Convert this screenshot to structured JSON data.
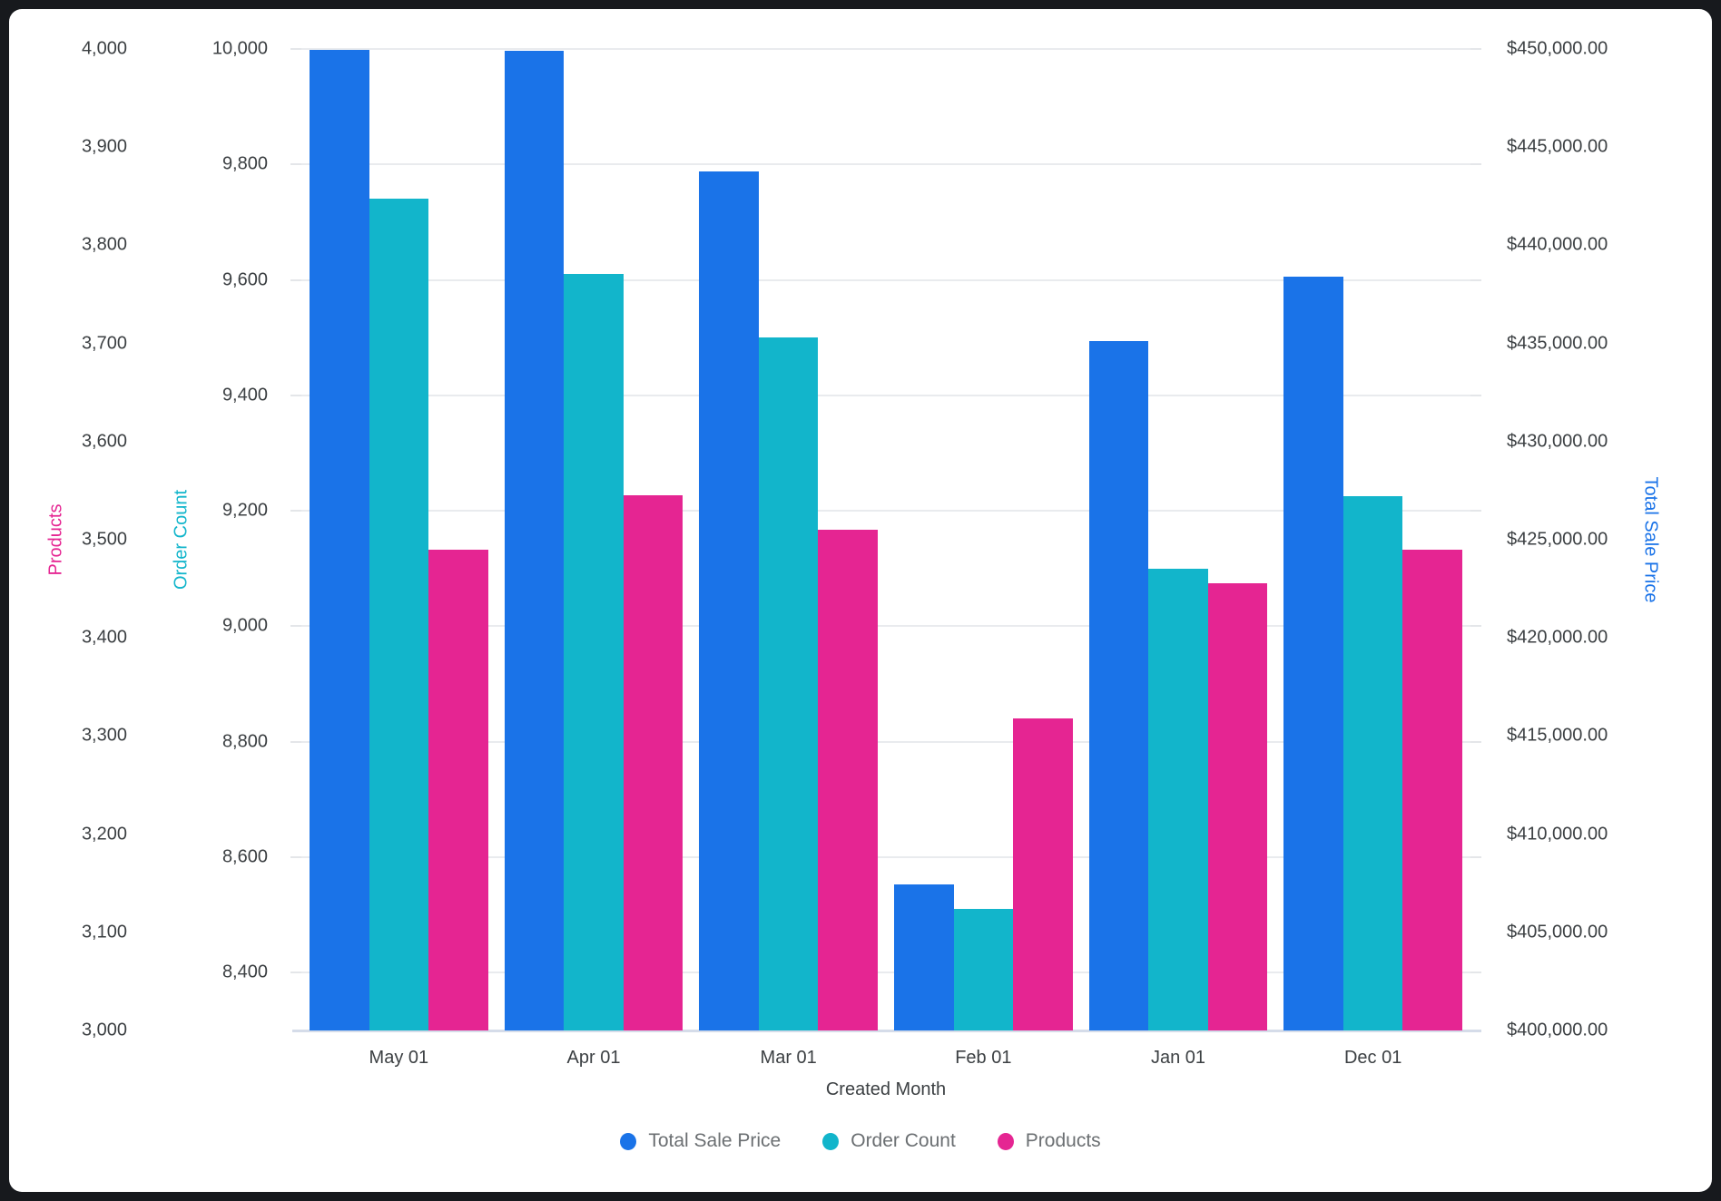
{
  "chart_data": {
    "type": "bar",
    "title": "",
    "categories": [
      "May 01",
      "Apr 01",
      "Mar 01",
      "Feb 01",
      "Jan 01",
      "Dec 01"
    ],
    "series": [
      {
        "name": "Total Sale Price",
        "axis": "sale",
        "color": "#1a73e8",
        "values": [
          449950,
          449900,
          443750,
          407450,
          435100,
          438400
        ]
      },
      {
        "name": "Order Count",
        "axis": "order",
        "color": "#12b5cb",
        "values": [
          9740,
          9610,
          9500,
          8510,
          9100,
          9225
        ]
      },
      {
        "name": "Products",
        "axis": "products",
        "color": "#e52592",
        "values": [
          3490,
          3545,
          3510,
          3318,
          3456,
          3490
        ]
      }
    ],
    "axes": {
      "x": {
        "title": "Created Month"
      },
      "products": {
        "title": "Products",
        "title_color": "#e52592",
        "min": 3000,
        "max": 4000,
        "tick_values": [
          3000,
          3100,
          3200,
          3300,
          3400,
          3500,
          3600,
          3700,
          3800,
          3900,
          4000
        ],
        "tick_labels": [
          "3,000",
          "3,100",
          "3,200",
          "3,300",
          "3,400",
          "3,500",
          "3,600",
          "3,700",
          "3,800",
          "3,900",
          "4,000"
        ]
      },
      "order": {
        "title": "Order Count",
        "title_color": "#12b5cb",
        "min": 8300,
        "max": 10000,
        "tick_values": [
          8400,
          8600,
          8800,
          9000,
          9200,
          9400,
          9600,
          9800,
          10000
        ],
        "tick_labels": [
          "8,400",
          "8,600",
          "8,800",
          "9,000",
          "9,200",
          "9,400",
          "9,600",
          "9,800",
          "10,000"
        ]
      },
      "sale": {
        "title": "Total Sale Price",
        "title_color": "#1a73e8",
        "min": 400000,
        "max": 450000,
        "tick_values": [
          400000,
          405000,
          410000,
          415000,
          420000,
          425000,
          430000,
          435000,
          440000,
          445000,
          450000
        ],
        "tick_labels": [
          "$400,000.00",
          "$405,000.00",
          "$410,000.00",
          "$415,000.00",
          "$420,000.00",
          "$425,000.00",
          "$430,000.00",
          "$435,000.00",
          "$440,000.00",
          "$445,000.00",
          "$450,000.00"
        ]
      }
    },
    "legend": [
      {
        "label": "Total Sale Price",
        "color": "#1a73e8"
      },
      {
        "label": "Order Count",
        "color": "#12b5cb"
      },
      {
        "label": "Products",
        "color": "#e52592"
      }
    ],
    "legend_position": "bottom",
    "grid": "horizontal-on-order-count-ticks"
  },
  "styles": {
    "frame_background": "#17191d",
    "card_background": "#ffffff",
    "tick_label_color": "#3c4043",
    "gridline_color": "#e9ebee",
    "axis_line_color": "#d5dce9",
    "legend_text_color": "#6b6f72"
  }
}
